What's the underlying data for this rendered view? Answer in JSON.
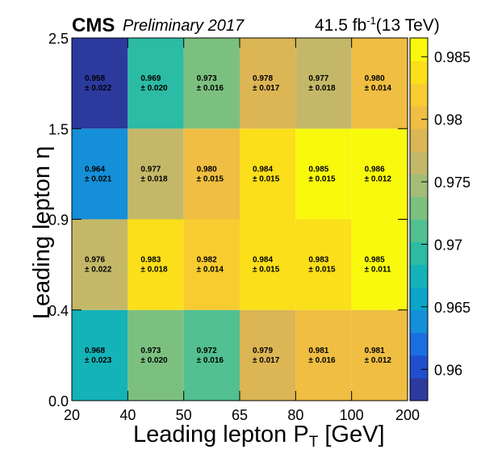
{
  "header": {
    "experiment": "CMS",
    "preliminary": "Preliminary 2017",
    "lumi_prefix": "41.5 fb",
    "lumi_exp": "-1",
    "lumi_suffix": "(13 TeV)"
  },
  "axes": {
    "xlabel_main": "Leading lepton P",
    "xlabel_sub": "T",
    "xlabel_unit": " [GeV]",
    "ylabel": "Leading lepton η"
  },
  "chart_data": {
    "type": "heatmap",
    "x_bin_edges": [
      20,
      40,
      50,
      65,
      80,
      100,
      200
    ],
    "y_bin_edges": [
      0.0,
      0.4,
      0.9,
      1.5,
      2.5
    ],
    "x_tick_labels": [
      "20",
      "40",
      "50",
      "65",
      "80",
      "100",
      "200"
    ],
    "y_tick_labels": [
      "0.0",
      "0.4",
      "0.9",
      "1.5",
      "2.5"
    ],
    "values": [
      [
        0.968,
        0.973,
        0.972,
        0.979,
        0.981,
        0.981
      ],
      [
        0.976,
        0.983,
        0.982,
        0.984,
        0.983,
        0.985
      ],
      [
        0.964,
        0.977,
        0.98,
        0.984,
        0.985,
        0.986
      ],
      [
        0.958,
        0.969,
        0.973,
        0.978,
        0.977,
        0.98
      ]
    ],
    "value_labels": [
      [
        "0.968",
        "0.973",
        "0.972",
        "0.979",
        "0.981",
        "0.981"
      ],
      [
        "0.976",
        "0.983",
        "0.982",
        "0.984",
        "0.983",
        "0.985"
      ],
      [
        "0.964",
        "0.977",
        "0.980",
        "0.984",
        "0.985",
        "0.986"
      ],
      [
        "0.958",
        "0.969",
        "0.973",
        "0.978",
        "0.977",
        "0.980"
      ]
    ],
    "error_labels": [
      [
        "± 0.023",
        "± 0.020",
        "± 0.016",
        "± 0.017",
        "± 0.016",
        "± 0.012"
      ],
      [
        "± 0.022",
        "± 0.018",
        "± 0.014",
        "± 0.015",
        "± 0.015",
        "± 0.011"
      ],
      [
        "± 0.021",
        "± 0.018",
        "± 0.015",
        "± 0.015",
        "± 0.015",
        "± 0.012"
      ],
      [
        "± 0.022",
        "± 0.020",
        "± 0.016",
        "± 0.017",
        "± 0.018",
        "± 0.014"
      ]
    ],
    "color_scale": {
      "min": 0.9575,
      "max": 0.9865,
      "ticks": [
        0.96,
        0.965,
        0.97,
        0.975,
        0.98,
        0.985
      ],
      "tick_labels": [
        "0.96",
        "0.965",
        "0.97",
        "0.975",
        "0.98",
        "0.985"
      ],
      "colors": [
        "#2c3a9e",
        "#1f4fcc",
        "#1a6ee0",
        "#148fd8",
        "#0aa5c8",
        "#14b3b8",
        "#2cbba4",
        "#52c090",
        "#7cc080",
        "#a3bd78",
        "#c4b868",
        "#dcb555",
        "#efbe42",
        "#f8cc30",
        "#fadf1a",
        "#f9f90e"
      ]
    },
    "grid": false
  }
}
